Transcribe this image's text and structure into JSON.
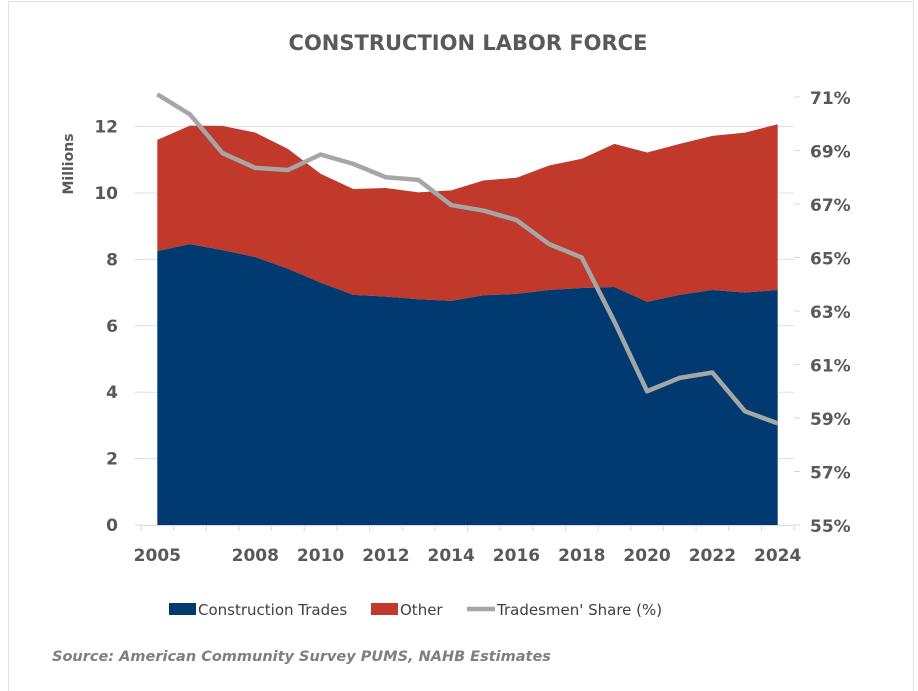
{
  "chart_data": {
    "type": "area",
    "title": "CONSTRUCTION LABOR FORCE",
    "ylabel": "Millions",
    "y2label": "",
    "xlabel": "",
    "x": [
      2005,
      2006,
      2007,
      2008,
      2009,
      2010,
      2011,
      2012,
      2013,
      2014,
      2015,
      2016,
      2017,
      2018,
      2019,
      2020,
      2021,
      2022,
      2023,
      2024
    ],
    "x_tick_labels": [
      "2005",
      "2008",
      "2010",
      "2012",
      "2014",
      "2016",
      "2018",
      "2020",
      "2022",
      "2024"
    ],
    "x_tick_years": [
      2005,
      2008,
      2010,
      2012,
      2014,
      2016,
      2018,
      2020,
      2022,
      2024
    ],
    "ylim": [
      0,
      12.9
    ],
    "y_ticks": [
      0,
      2,
      4,
      6,
      8,
      10,
      12
    ],
    "y_tick_labels": [
      "0",
      "2",
      "4",
      "6",
      "8",
      "10",
      "12"
    ],
    "y2lim": [
      55,
      71
    ],
    "y2_ticks": [
      55,
      57,
      59,
      61,
      63,
      65,
      67,
      69,
      71
    ],
    "y2_tick_labels": [
      "55%",
      "57%",
      "59%",
      "61%",
      "63%",
      "65%",
      "67%",
      "69%",
      "71%"
    ],
    "grid": true,
    "legend_position": "bottom",
    "series": [
      {
        "name": "Construction Trades",
        "kind": "stacked-area",
        "axis": "left",
        "color": "#003a70",
        "values": [
          8.25,
          8.46,
          8.28,
          8.07,
          7.72,
          7.3,
          6.93,
          6.88,
          6.8,
          6.75,
          6.92,
          6.96,
          7.08,
          7.14,
          7.17,
          6.72,
          6.93,
          7.08,
          7.0,
          7.08
        ]
      },
      {
        "name": "Other",
        "kind": "stacked-area",
        "axis": "left",
        "color": "#c0392b",
        "values": [
          3.35,
          3.57,
          3.74,
          3.75,
          3.61,
          3.28,
          3.19,
          3.27,
          3.22,
          3.33,
          3.46,
          3.5,
          3.75,
          3.89,
          4.31,
          4.5,
          4.55,
          4.64,
          4.82,
          4.99
        ]
      },
      {
        "name": "Tradesmen' Share (%)",
        "kind": "line",
        "axis": "right",
        "color": "#a6a6a6",
        "values": [
          71.1,
          70.35,
          68.9,
          68.35,
          68.27,
          68.85,
          68.5,
          68.0,
          67.9,
          66.96,
          66.75,
          66.4,
          65.5,
          65.0,
          62.6,
          60.0,
          60.5,
          60.7,
          59.25,
          58.8
        ]
      }
    ],
    "source": "Source: American Community Survey PUMS, NAHB  Estimates"
  },
  "colors": {
    "text": "#595959",
    "gridline": "#e0e0e0",
    "background": "#ffffff"
  }
}
